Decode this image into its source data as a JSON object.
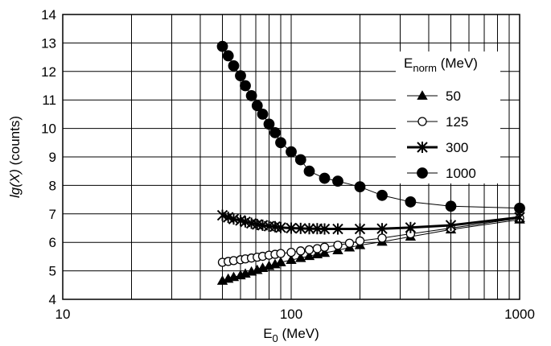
{
  "chart_data": {
    "type": "line",
    "xscale": "log",
    "xlim": [
      10,
      1000
    ],
    "ylim": [
      4,
      14
    ],
    "grid": true,
    "xlabel": {
      "base": "E",
      "sub": "0",
      "rest": " (MeV)"
    },
    "ylabel": {
      "pre": "",
      "italic": "lg(X)",
      "post": " (counts)"
    },
    "x_ticks": [
      10,
      100,
      1000
    ],
    "x_tick_labels": [
      "10",
      "100",
      "1000"
    ],
    "y_ticks": [
      4,
      5,
      6,
      7,
      8,
      9,
      10,
      11,
      12,
      13,
      14
    ],
    "y_tick_labels": [
      "4",
      "5",
      "6",
      "7",
      "8",
      "9",
      "10",
      "11",
      "12",
      "13",
      "14"
    ],
    "legend": {
      "placement": "top-right",
      "title": {
        "base": "E",
        "sub": "norm",
        "rest": " (MeV)"
      }
    },
    "series": [
      {
        "name": "50",
        "marker": "triangle",
        "line_width": 1,
        "x": [
          50,
          53,
          56,
          60,
          63,
          67,
          71,
          75,
          80,
          85,
          90,
          100,
          110,
          120,
          130,
          140,
          160,
          180,
          200,
          250,
          333,
          500,
          1000
        ],
        "y": [
          4.65,
          4.72,
          4.78,
          4.84,
          4.9,
          4.97,
          5.03,
          5.1,
          5.17,
          5.23,
          5.3,
          5.38,
          5.45,
          5.52,
          5.58,
          5.63,
          5.72,
          5.82,
          5.9,
          6.02,
          6.2,
          6.45,
          6.8
        ]
      },
      {
        "name": "125",
        "marker": "open-circle",
        "line_width": 1,
        "x": [
          50,
          53,
          56,
          60,
          63,
          67,
          71,
          75,
          80,
          85,
          90,
          100,
          110,
          120,
          130,
          140,
          160,
          180,
          200,
          250,
          333,
          500,
          1000
        ],
        "y": [
          5.3,
          5.33,
          5.36,
          5.39,
          5.42,
          5.45,
          5.48,
          5.51,
          5.55,
          5.58,
          5.61,
          5.65,
          5.7,
          5.74,
          5.78,
          5.83,
          5.9,
          5.97,
          6.05,
          6.15,
          6.3,
          6.5,
          6.85
        ]
      },
      {
        "name": "300",
        "marker": "star",
        "line_width": 3,
        "x": [
          50,
          53,
          56,
          60,
          63,
          67,
          71,
          75,
          80,
          85,
          90,
          100,
          110,
          120,
          130,
          140,
          160,
          200,
          250,
          333,
          500,
          1000
        ],
        "y": [
          6.95,
          6.88,
          6.82,
          6.77,
          6.72,
          6.67,
          6.63,
          6.6,
          6.57,
          6.55,
          6.52,
          6.5,
          6.49,
          6.48,
          6.48,
          6.47,
          6.47,
          6.47,
          6.48,
          6.52,
          6.6,
          6.88
        ]
      },
      {
        "name": "1000",
        "marker": "filled-circle",
        "line_width": 1,
        "x": [
          50,
          53,
          56,
          60,
          63,
          67,
          71,
          75,
          80,
          85,
          90,
          100,
          110,
          120,
          140,
          160,
          200,
          250,
          333,
          500,
          1000
        ],
        "y": [
          12.88,
          12.55,
          12.2,
          11.85,
          11.5,
          11.15,
          10.8,
          10.5,
          10.15,
          9.85,
          9.5,
          9.18,
          8.9,
          8.5,
          8.25,
          8.15,
          7.95,
          7.65,
          7.42,
          7.27,
          7.2
        ]
      }
    ]
  }
}
